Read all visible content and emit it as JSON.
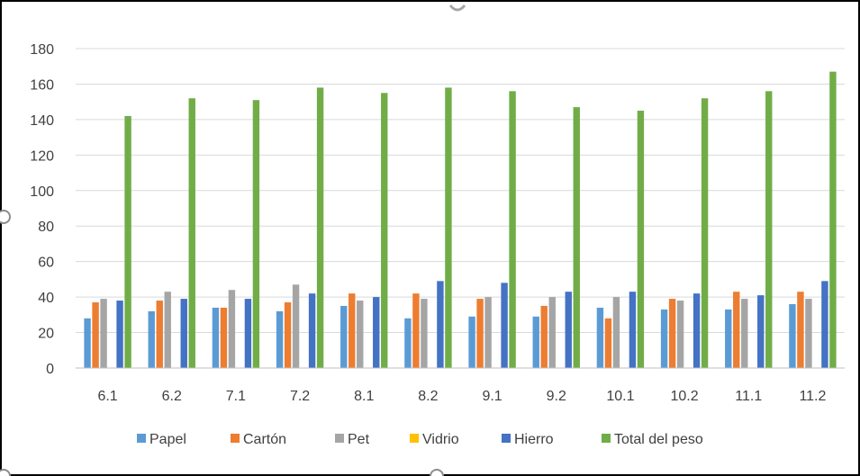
{
  "chart_data": {
    "type": "bar",
    "title": "",
    "xlabel": "",
    "ylabel": "",
    "ylim": [
      0,
      180
    ],
    "y_ticks": [
      "0",
      "20",
      "40",
      "60",
      "80",
      "100",
      "120",
      "140",
      "160",
      "180"
    ],
    "grid": true,
    "legend_position": "bottom",
    "categories": [
      "6.1",
      "6.2",
      "7.1",
      "7.2",
      "8.1",
      "8.2",
      "9.1",
      "9.2",
      "10.1",
      "10.2",
      "11.1",
      "11.2"
    ],
    "series": [
      {
        "name": "Papel",
        "color": "#5b9bd5",
        "values": [
          28,
          32,
          34,
          32,
          35,
          28,
          29,
          29,
          34,
          33,
          33,
          36
        ]
      },
      {
        "name": "Cartón",
        "color": "#ed7d31",
        "values": [
          37,
          38,
          34,
          37,
          42,
          42,
          39,
          35,
          28,
          39,
          43,
          43
        ]
      },
      {
        "name": "Pet",
        "color": "#a5a5a5",
        "values": [
          39,
          43,
          44,
          47,
          38,
          39,
          40,
          40,
          40,
          38,
          39,
          39
        ]
      },
      {
        "name": "Vidrio",
        "color": "#ffc000",
        "values": [
          0,
          0,
          0,
          0,
          0,
          0,
          0,
          0,
          0,
          0,
          0,
          0
        ]
      },
      {
        "name": "Hierro",
        "color": "#4472c4",
        "values": [
          38,
          39,
          39,
          42,
          40,
          49,
          48,
          43,
          43,
          42,
          41,
          49
        ]
      },
      {
        "name": "Total del peso",
        "color": "#70ad47",
        "values": [
          142,
          152,
          151,
          158,
          155,
          158,
          156,
          147,
          145,
          152,
          156,
          167
        ]
      }
    ]
  }
}
